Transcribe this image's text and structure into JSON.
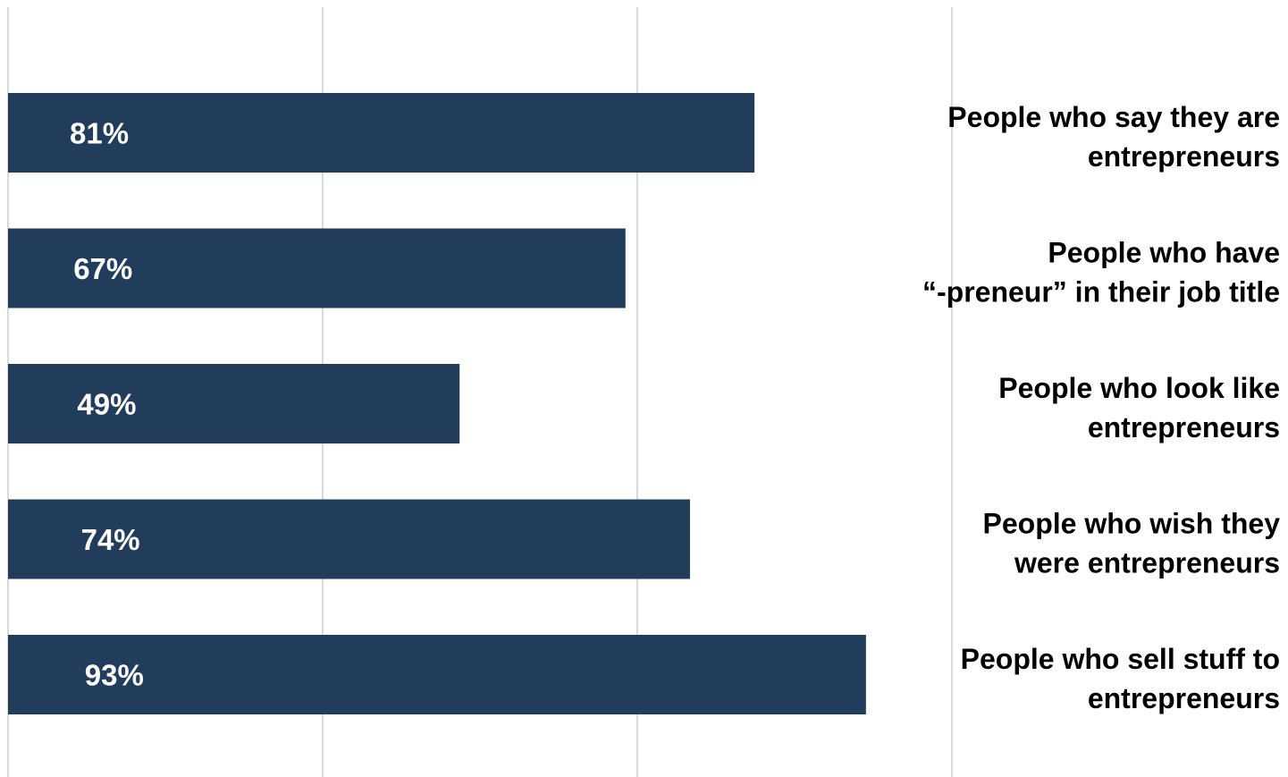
{
  "chart_data": {
    "type": "bar",
    "orientation": "horizontal",
    "categories": [
      [
        "People who say they are",
        "entrepreneurs"
      ],
      [
        "People who have",
        "“-preneur” in their job title"
      ],
      [
        "People who look like",
        "entrepreneurs"
      ],
      [
        "People who wish they",
        "were entrepreneurs"
      ],
      [
        "People who sell stuff to",
        "entrepreneurs"
      ]
    ],
    "values": [
      81,
      67,
      49,
      74,
      93
    ],
    "value_labels": [
      "81%",
      "67%",
      "49%",
      "74%",
      "93%"
    ],
    "xlim": [
      0,
      100
    ],
    "grid": true,
    "axis_ticks_visible": false,
    "colors": {
      "bar": "#213d5b",
      "grid": "#d9d9d9",
      "value_text": "#ffffff",
      "label_text": "#000000"
    }
  }
}
